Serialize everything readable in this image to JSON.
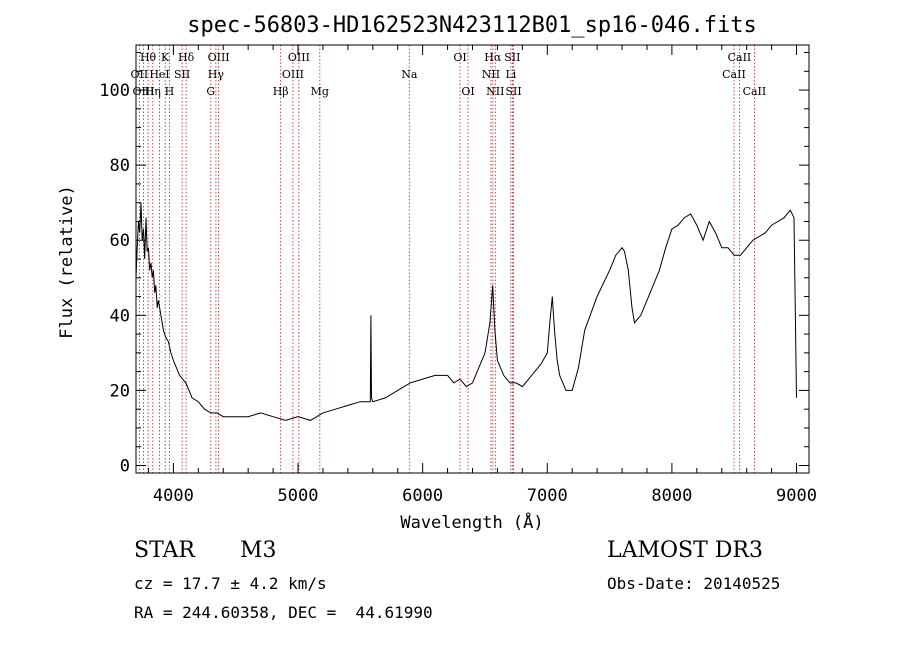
{
  "chart_data": {
    "type": "line",
    "title": "spec-56803-HD162523N423112B01_sp16-046.fits",
    "xlabel": "Wavelength (Å)",
    "ylabel": "Flux (relative)",
    "xlim": [
      3700,
      9100
    ],
    "ylim": [
      -2,
      112
    ],
    "x_ticks": [
      4000,
      5000,
      6000,
      7000,
      8000,
      9000
    ],
    "y_ticks": [
      0,
      20,
      40,
      60,
      80,
      100
    ],
    "grid": false,
    "line_color": "#000000",
    "marker_color": "#b22222",
    "series": [
      {
        "x": [
          3700,
          3710,
          3720,
          3730,
          3740,
          3750,
          3760,
          3770,
          3780,
          3790,
          3800,
          3810,
          3820,
          3830,
          3840,
          3850,
          3860,
          3870,
          3880,
          3900,
          3920,
          3940,
          3960,
          3980,
          4000,
          4050,
          4100,
          4150,
          4200,
          4250,
          4300,
          4350,
          4400,
          4450,
          4500,
          4600,
          4700,
          4800,
          4900,
          5000,
          5100,
          5200,
          5300,
          5400,
          5500,
          5580,
          5585,
          5590,
          5600,
          5700,
          5800,
          5900,
          6000,
          6100,
          6200,
          6250,
          6300,
          6350,
          6400,
          6450,
          6500,
          6540,
          6562,
          6580,
          6600,
          6650,
          6700,
          6750,
          6800,
          6850,
          6900,
          6950,
          7000,
          7020,
          7040,
          7050,
          7060,
          7080,
          7100,
          7150,
          7200,
          7250,
          7300,
          7400,
          7500,
          7550,
          7600,
          7620,
          7650,
          7680,
          7700,
          7750,
          7800,
          7850,
          7900,
          7950,
          8000,
          8050,
          8100,
          8150,
          8200,
          8250,
          8300,
          8350,
          8400,
          8450,
          8500,
          8550,
          8600,
          8650,
          8700,
          8750,
          8800,
          8850,
          8900,
          8950,
          8980,
          9000
        ],
        "y": [
          50,
          58,
          65,
          62,
          70,
          60,
          63,
          55,
          66,
          57,
          58,
          52,
          54,
          50,
          52,
          46,
          48,
          42,
          44,
          40,
          36,
          34,
          33,
          30,
          28,
          24,
          22,
          18,
          17,
          15,
          14,
          14,
          13,
          13,
          13,
          13,
          14,
          13,
          12,
          13,
          12,
          14,
          15,
          16,
          17,
          17,
          40,
          18,
          17,
          18,
          20,
          22,
          23,
          24,
          24,
          22,
          23,
          21,
          22,
          26,
          30,
          38,
          48,
          36,
          28,
          24,
          22,
          22,
          21,
          23,
          25,
          27,
          30,
          38,
          45,
          40,
          35,
          28,
          24,
          20,
          20,
          26,
          36,
          45,
          52,
          56,
          58,
          57,
          52,
          42,
          38,
          40,
          44,
          48,
          52,
          58,
          63,
          64,
          66,
          67,
          64,
          60,
          65,
          62,
          58,
          58,
          56,
          56,
          58,
          60,
          61,
          62,
          64,
          65,
          66,
          68,
          66,
          18
        ],
        "notes": "approximate flux values read from the spectrum plot"
      }
    ],
    "line_labels": [
      {
        "text": "Hθ",
        "x": 3797,
        "row": 0
      },
      {
        "text": "K",
        "x": 3934,
        "row": 0
      },
      {
        "text": "Hδ",
        "x": 4102,
        "row": 0
      },
      {
        "text": "OIII",
        "x": 4363,
        "row": 0
      },
      {
        "text": "OIII",
        "x": 5007,
        "row": 0
      },
      {
        "text": "OI",
        "x": 6300,
        "row": 0
      },
      {
        "text": "Hα",
        "x": 6563,
        "row": 0
      },
      {
        "text": "SII",
        "x": 6720,
        "row": 0
      },
      {
        "text": "CaII",
        "x": 8542,
        "row": 0
      },
      {
        "text": "OII",
        "x": 3727,
        "row": 1
      },
      {
        "text": "HeI",
        "x": 3889,
        "row": 1
      },
      {
        "text": "SII",
        "x": 4070,
        "row": 1
      },
      {
        "text": "Hγ",
        "x": 4341,
        "row": 1
      },
      {
        "text": "OIII",
        "x": 4959,
        "row": 1
      },
      {
        "text": "Na",
        "x": 5893,
        "row": 1
      },
      {
        "text": "NII",
        "x": 6548,
        "row": 1
      },
      {
        "text": "Li",
        "x": 6708,
        "row": 1
      },
      {
        "text": "CaII",
        "x": 8498,
        "row": 1
      },
      {
        "text": "OIII",
        "x": 3760,
        "row": 2
      },
      {
        "text": "Hη",
        "x": 3835,
        "row": 2
      },
      {
        "text": "H",
        "x": 3968,
        "row": 2
      },
      {
        "text": "G",
        "x": 4300,
        "row": 2
      },
      {
        "text": "Hβ",
        "x": 4861,
        "row": 2
      },
      {
        "text": "Mg",
        "x": 5175,
        "row": 2
      },
      {
        "text": "OI",
        "x": 6364,
        "row": 2
      },
      {
        "text": "NII",
        "x": 6583,
        "row": 2
      },
      {
        "text": "SII",
        "x": 6730,
        "row": 2
      },
      {
        "text": "CaII",
        "x": 8662,
        "row": 2
      }
    ],
    "marker_lines": [
      3727,
      3760,
      3797,
      3835,
      3889,
      3934,
      3968,
      4070,
      4102,
      4300,
      4341,
      4363,
      4861,
      4959,
      5007,
      5175,
      5893,
      6300,
      6364,
      6548,
      6563,
      6583,
      6708,
      6720,
      6730,
      8498,
      8542,
      8662
    ]
  },
  "info": {
    "object_class": "STAR",
    "subclass": "M3",
    "survey": "LAMOST DR3",
    "redshift": "cz = 17.7 ± 4.2 km/s",
    "obs_date": "Obs-Date: 20140525",
    "coords": "RA = 244.60358, DEC =  44.61990"
  }
}
